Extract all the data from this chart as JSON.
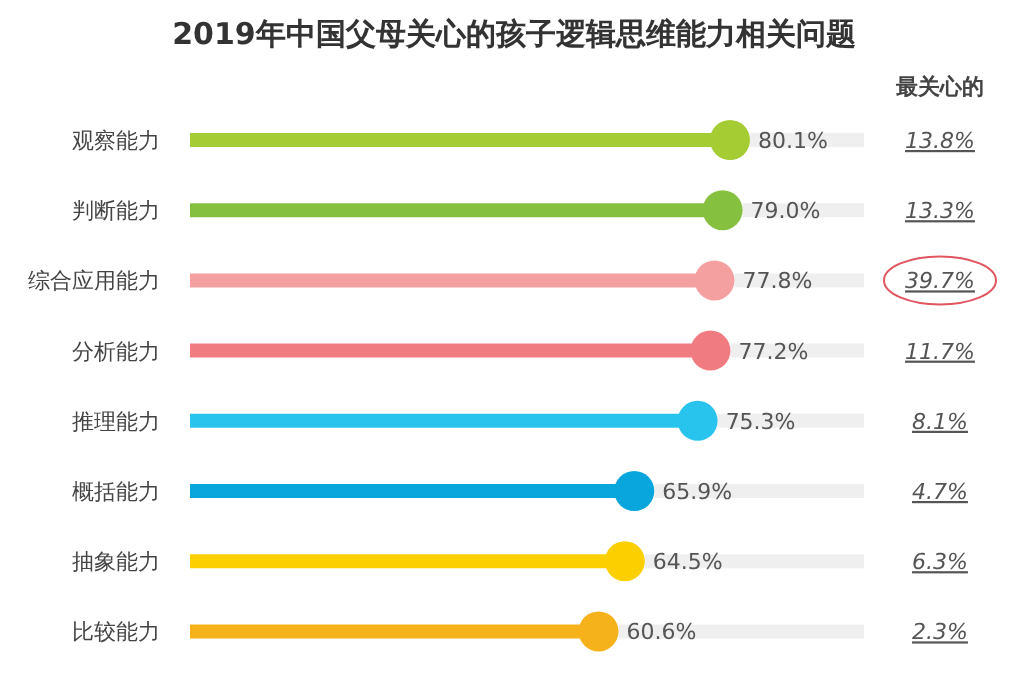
{
  "chart_data": {
    "type": "lollipop",
    "orientation": "horizontal",
    "title": "2019年中国父母关心的孩子逻辑思维能力相关问题",
    "categories": [
      "观察能力",
      "判断能力",
      "综合应用能力",
      "分析能力",
      "推理能力",
      "概括能力",
      "抽象能力",
      "比较能力"
    ],
    "values": [
      80.1,
      79.0,
      77.8,
      77.2,
      75.3,
      65.9,
      64.5,
      60.6
    ],
    "value_labels": [
      "80.1%",
      "79.0%",
      "77.8%",
      "77.2%",
      "75.3%",
      "65.9%",
      "64.5%",
      "60.6%"
    ],
    "colors": [
      "#a6cc33",
      "#86c03f",
      "#f4a0a0",
      "#f07c82",
      "#29c4ee",
      "#08a6dc",
      "#fccf00",
      "#f5b21b"
    ],
    "tick_labels": "y",
    "grid": "y",
    "marker": "circle",
    "annotations": [
      "最关心的",
      "13.8%",
      "13.3%",
      "39.7%",
      "11.7%",
      "8.1%",
      "4.7%",
      "6.3%",
      "2.3%"
    ]
  }
}
